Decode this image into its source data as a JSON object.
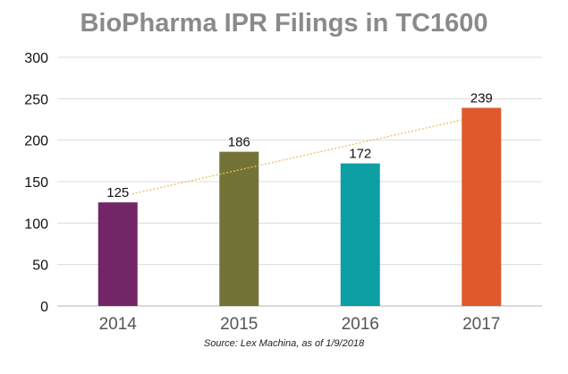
{
  "chart_data": {
    "type": "bar",
    "title": "BioPharma IPR Filings in TC1600",
    "categories": [
      "2014",
      "2015",
      "2016",
      "2017"
    ],
    "values": [
      125,
      186,
      172,
      239
    ],
    "colors": [
      "#722668",
      "#737338",
      "#0d9fa4",
      "#df592d"
    ],
    "trendline": {
      "color": "#e8c060",
      "style": "dotted",
      "type": "linear"
    },
    "xlabel": "",
    "ylabel": "",
    "ylim": [
      0,
      300
    ],
    "yticks": [
      0,
      50,
      100,
      150,
      200,
      250,
      300
    ],
    "grid": true,
    "legend": "none",
    "source": "Source: Lex Machina, as of 1/9/2018"
  }
}
